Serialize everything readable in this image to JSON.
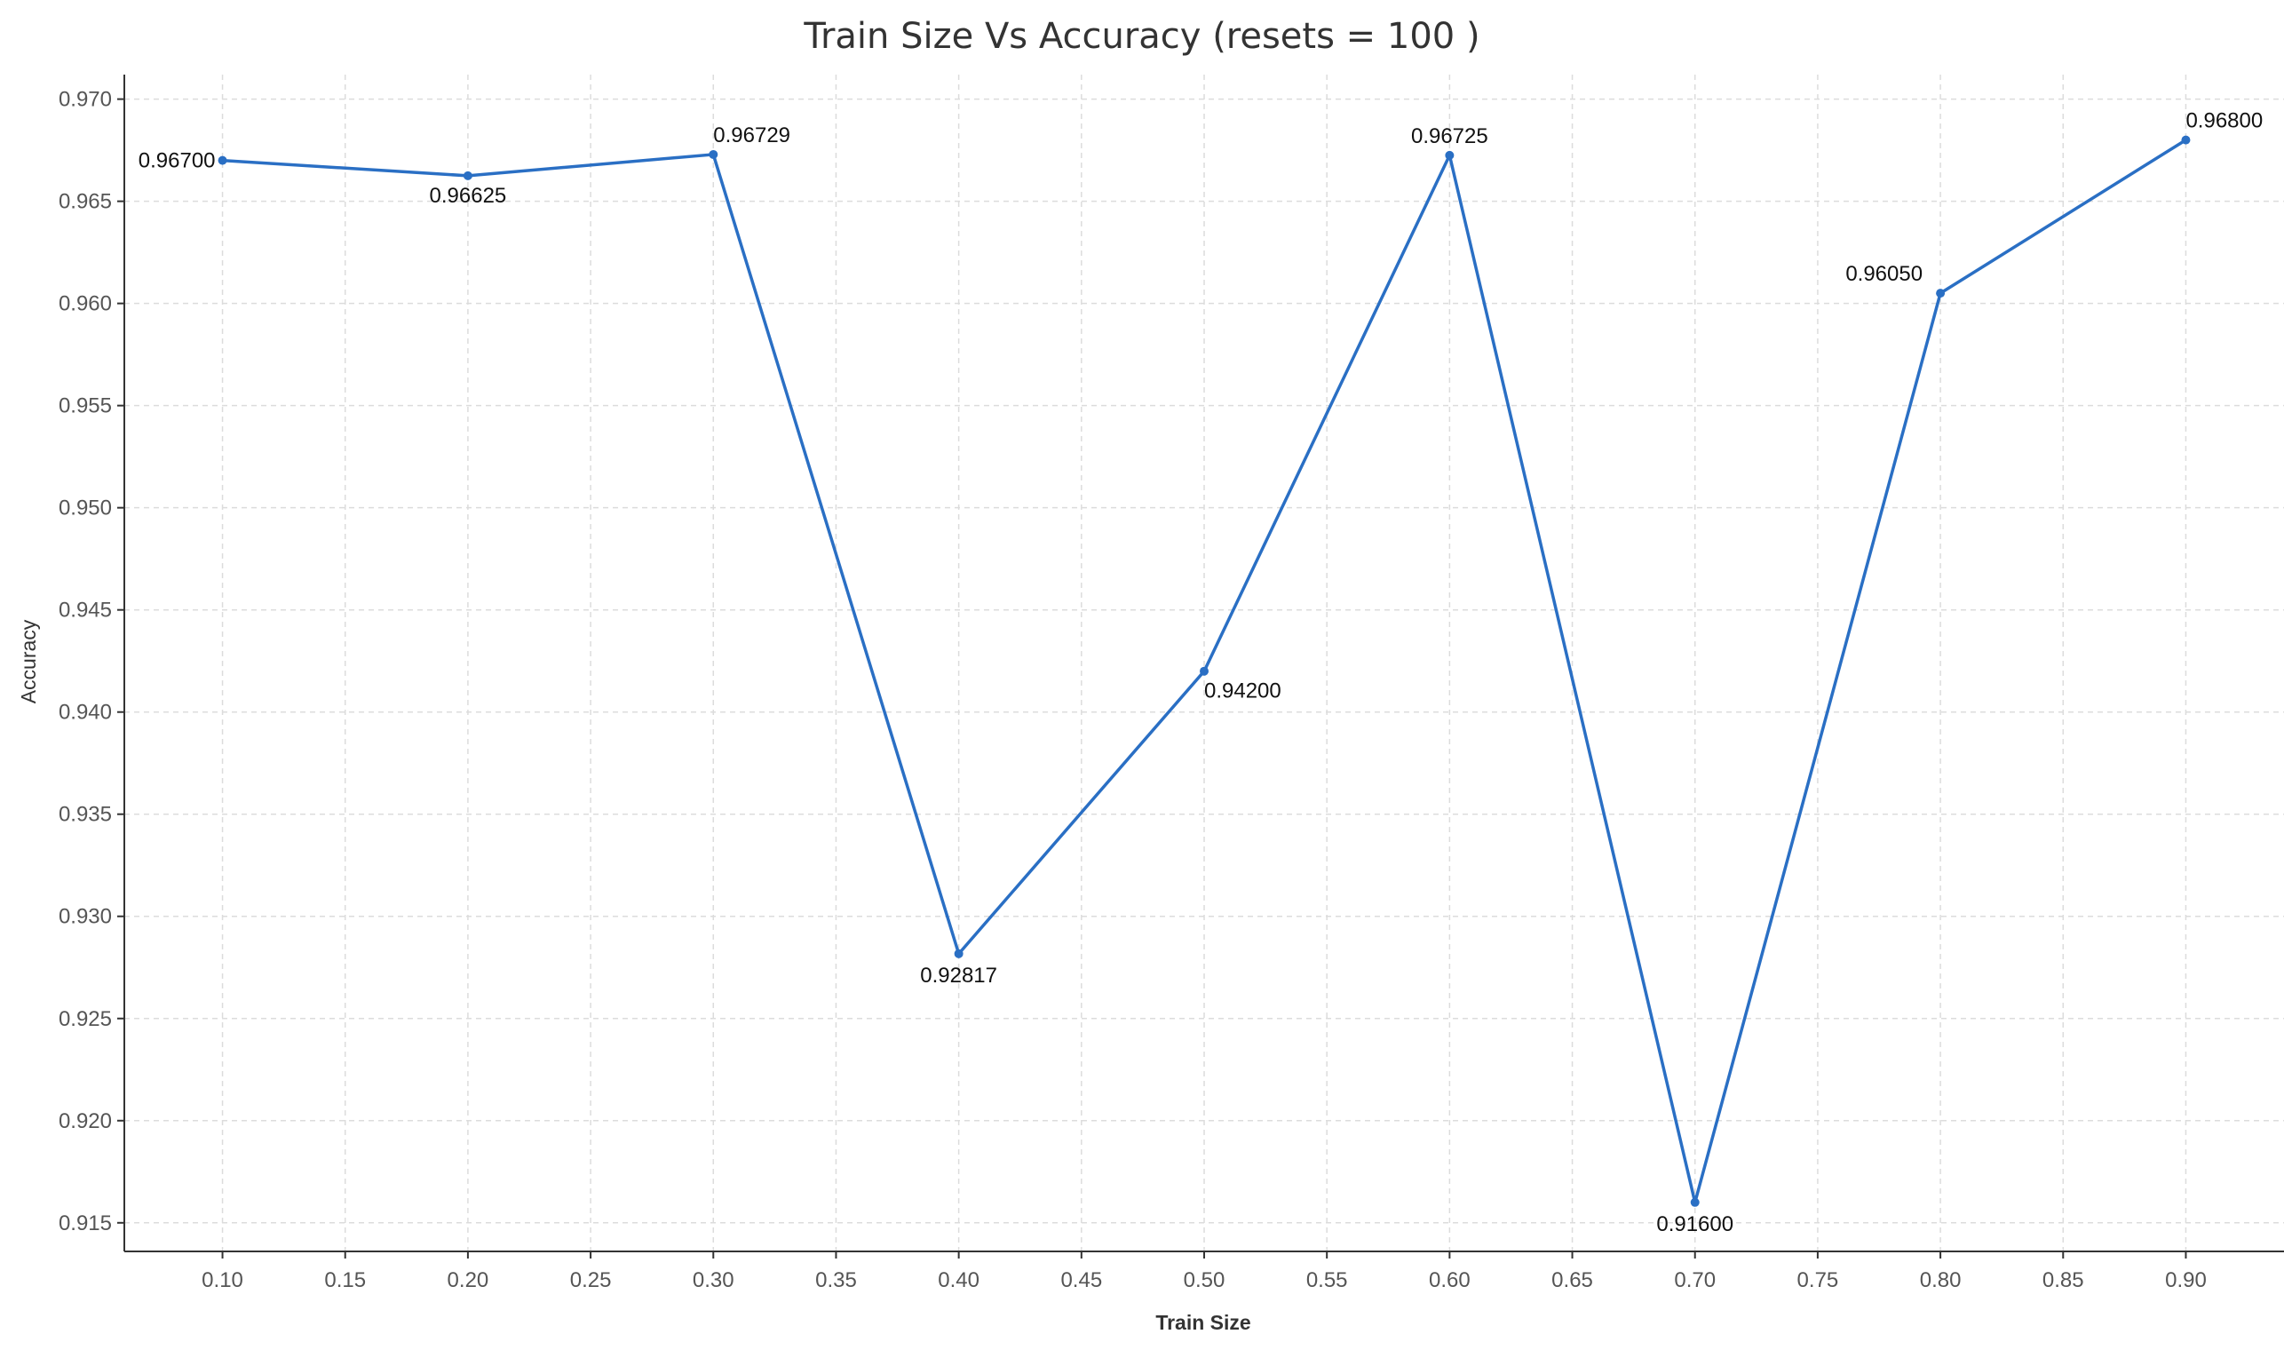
{
  "chart_data": {
    "type": "line",
    "title": "Train Size Vs Accuracy (resets = 100 )",
    "xlabel": "Train Size",
    "ylabel": "Accuracy",
    "x": [
      0.1,
      0.2,
      0.3,
      0.4,
      0.5,
      0.6,
      0.7,
      0.8,
      0.9
    ],
    "x_ticks": [
      "0.10",
      "0.15",
      "0.20",
      "0.25",
      "0.30",
      "0.35",
      "0.40",
      "0.45",
      "0.50",
      "0.55",
      "0.60",
      "0.65",
      "0.70",
      "0.75",
      "0.80",
      "0.85",
      "0.90"
    ],
    "y_ticks": [
      "0.915",
      "0.920",
      "0.925",
      "0.930",
      "0.935",
      "0.940",
      "0.945",
      "0.950",
      "0.955",
      "0.960",
      "0.965",
      "0.970"
    ],
    "series": [
      {
        "values": [
          0.967,
          0.96625,
          0.96729,
          0.92817,
          0.942,
          0.96725,
          0.916,
          0.9605,
          0.968
        ],
        "labels": [
          "0.96700",
          "0.96625",
          "0.96729",
          "0.92817",
          "0.94200",
          "0.96725",
          "0.91600",
          "0.96050",
          "0.96800"
        ]
      }
    ],
    "xlim": [
      0.06,
      0.94
    ],
    "ylim": [
      0.9136,
      0.9712
    ],
    "grid": true,
    "colors": {
      "line": "#2a6fc4",
      "grid": "#dcdcdc",
      "axis": "#333333"
    }
  }
}
